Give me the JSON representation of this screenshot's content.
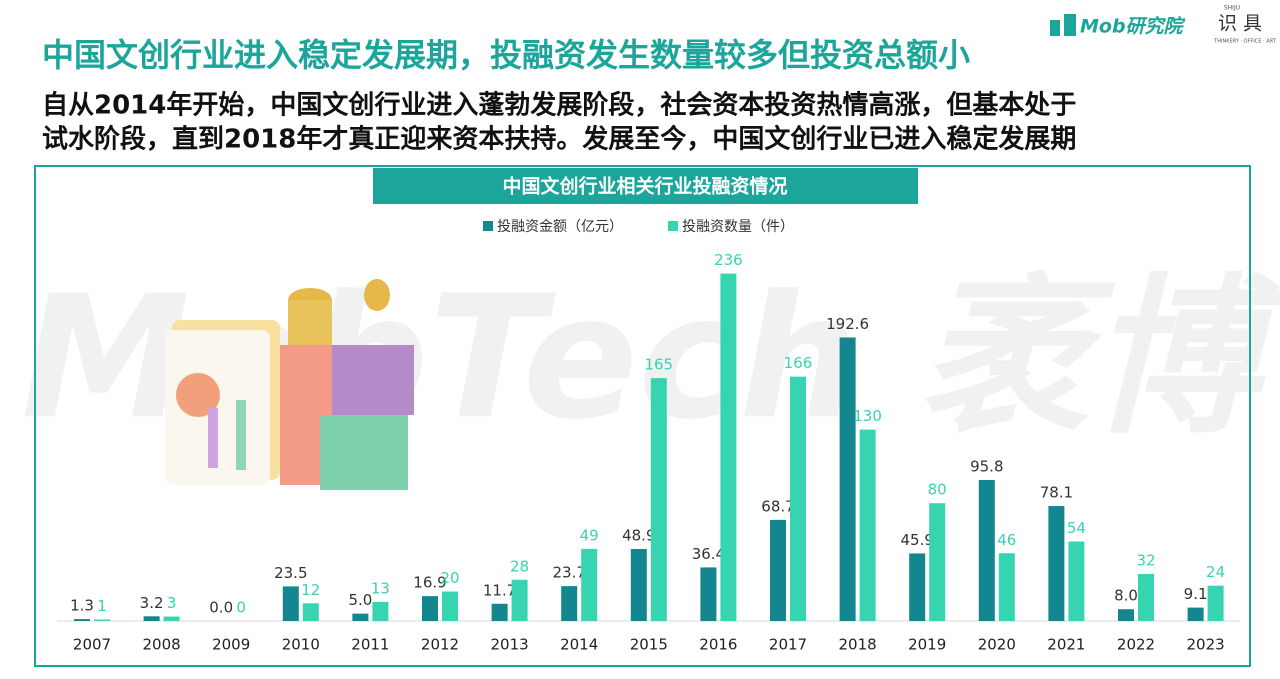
{
  "header": {
    "logo": "Mob研究院",
    "brand": "识 具",
    "brand_top": "SHIJU",
    "brand_sub": "THINKERY · OFFICE · ART",
    "title": "中国文创行业进入稳定发展期，投融资发生数量较多但投资总额小",
    "subtitle_lines": [
      "自从2014年开始，中国文创行业进入蓬勃发展阶段，社会资本投资热情高涨，但基本处于",
      "试水阶段，直到2018年才真正迎来资本扶持。发展至今，中国文创行业已进入稳定发展期"
    ]
  },
  "watermark": "MobTech 袤博",
  "chart_data": {
    "type": "bar",
    "title": "中国文创行业相关行业投融资情况",
    "categories": [
      "2007",
      "2008",
      "2009",
      "2010",
      "2011",
      "2012",
      "2013",
      "2014",
      "2015",
      "2016",
      "2017",
      "2018",
      "2019",
      "2020",
      "2021",
      "2022",
      "2023"
    ],
    "series": [
      {
        "name": "投融资金额（亿元）",
        "color": "#13868f",
        "values": [
          1.3,
          3.2,
          0,
          23.5,
          5,
          16.9,
          11.7,
          23.7,
          48.9,
          36.4,
          68.7,
          192.6,
          45.9,
          95.8,
          78.1,
          8,
          9.1
        ],
        "value_labels": [
          "1.3",
          "3.2",
          "0.0",
          "23.5",
          "5.0",
          "16.9",
          "11.7",
          "23.7",
          "48.9",
          "36.4",
          "68.7",
          "192.6",
          "45.9",
          "95.8",
          "78.1",
          "8.0",
          "9.1"
        ]
      },
      {
        "name": "投融资数量（件）",
        "color": "#36d4b1",
        "values": [
          1,
          3,
          0,
          12,
          13,
          20,
          28,
          49,
          165,
          236,
          166,
          130,
          80,
          46,
          54,
          32,
          24
        ]
      }
    ],
    "ylim": [
      0,
      250
    ]
  }
}
